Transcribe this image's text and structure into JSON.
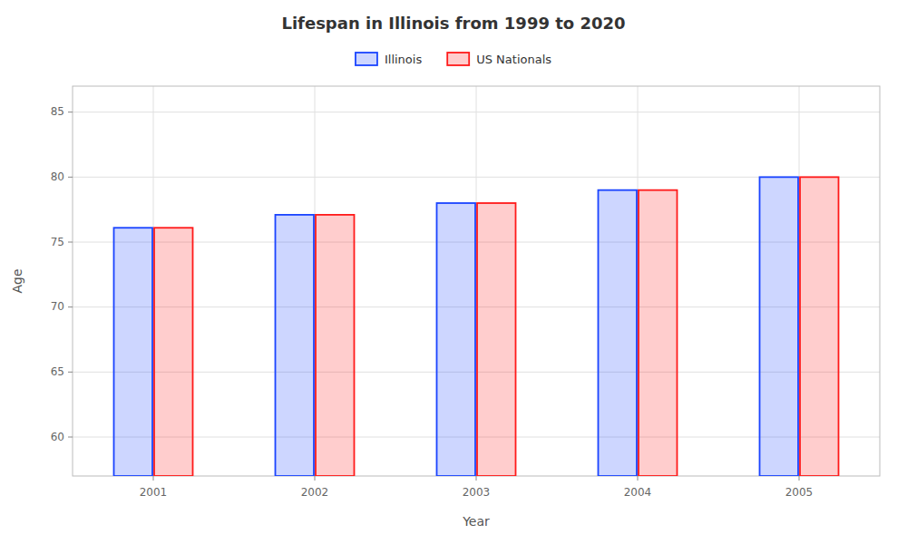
{
  "chart_data": {
    "type": "bar",
    "title": "Lifespan in Illinois from 1999 to 2020",
    "xlabel": "Year",
    "ylabel": "Age",
    "categories": [
      "2001",
      "2002",
      "2003",
      "2004",
      "2005"
    ],
    "series": [
      {
        "name": "Illinois",
        "color": "#1a44ff",
        "values": [
          76.1,
          77.1,
          78.0,
          79.0,
          80.0
        ]
      },
      {
        "name": "US Nationals",
        "color": "#ff1a1a",
        "values": [
          76.1,
          77.1,
          78.0,
          79.0,
          80.0
        ]
      }
    ],
    "ylim": [
      57,
      87
    ],
    "yticks": [
      60,
      65,
      70,
      75,
      80,
      85
    ],
    "grid": true,
    "legend": "top"
  }
}
